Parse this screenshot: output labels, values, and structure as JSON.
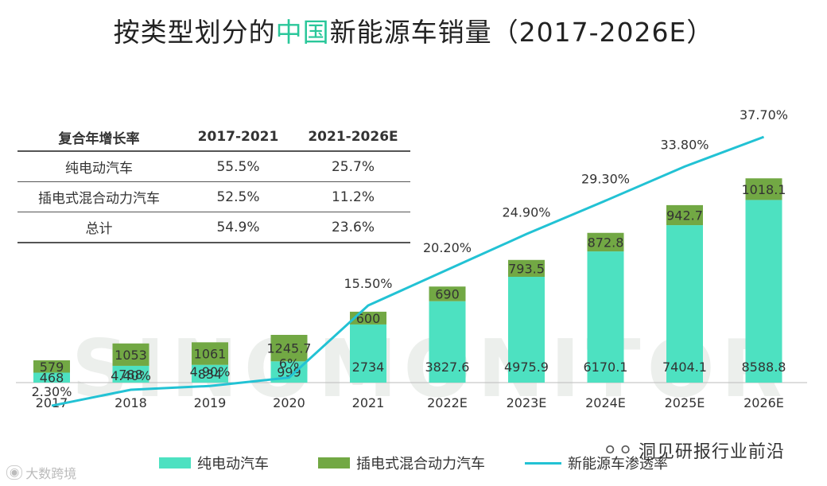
{
  "title": {
    "prefix": "按类型划分的",
    "highlight": "中国",
    "suffix": "新能源车销量（2017-2026E）"
  },
  "cagr_table": {
    "headers": [
      "复合年增长率",
      "2017-2021",
      "2021-2026E"
    ],
    "rows": [
      [
        "纯电动汽车",
        "55.5%",
        "25.7%"
      ],
      [
        "插电式混合动力汽车",
        "52.5%",
        "11.2%"
      ],
      [
        "总计",
        "54.9%",
        "23.6%"
      ]
    ]
  },
  "watermark": "SINOMONITOR",
  "wechat_source": "洞见研报行业前沿",
  "corner_mark": "大数跨境",
  "colors": {
    "bev": "#4de1c1",
    "phev": "#72a844",
    "line": "#22c2d4",
    "highlight": "#2ac79a"
  },
  "chart_data": {
    "type": "bar",
    "stacked": true,
    "categories": [
      "2017",
      "2018",
      "2019",
      "2020",
      "2021",
      "2022E",
      "2023E",
      "2024E",
      "2025E",
      "2026E"
    ],
    "series": [
      {
        "name": "纯电动汽车",
        "values": [
          468,
          788,
          834,
          999,
          2734,
          3827.6,
          4975.9,
          6170.1,
          7404.1,
          8588.8
        ],
        "labels": [
          "468",
          "788",
          "834",
          "999",
          "2734",
          "3827.6",
          "4975.9",
          "6170.1",
          "7404.1",
          "8588.8"
        ]
      },
      {
        "name": "插电式混合动力汽车",
        "values": [
          579,
          1053,
          1061,
          1245.7,
          600,
          690,
          793.5,
          872.8,
          942.7,
          1018.1
        ],
        "labels": [
          "579",
          "1053",
          "1061",
          "1245.7",
          "600",
          "690",
          "793.5",
          "872.8",
          "942.7",
          "1018.1"
        ]
      }
    ],
    "line": {
      "name": "新能源车渗透率",
      "values": [
        2.3,
        4.4,
        4.9,
        6,
        15.5,
        20.2,
        24.9,
        29.3,
        33.8,
        37.7
      ],
      "labels": [
        "2.30%",
        "4.40%",
        "4.90%",
        "6%",
        "15.50%",
        "20.20%",
        "24.90%",
        "29.30%",
        "33.80%",
        "37.70%"
      ]
    },
    "legend": [
      "纯电动汽车",
      "插电式混合动力汽车",
      "新能源车渗透率"
    ],
    "legend_position": "bottom"
  }
}
